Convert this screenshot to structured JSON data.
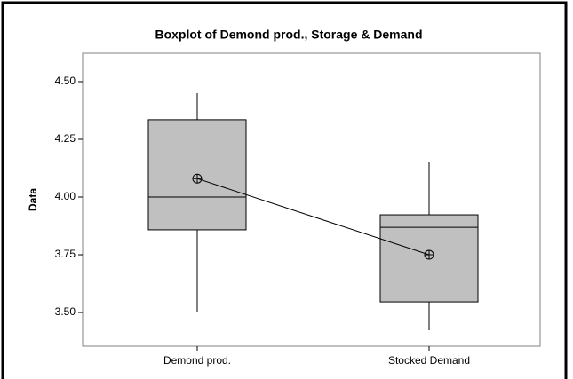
{
  "chart_data": {
    "type": "boxplot",
    "title": "Boxplot of Demond prod., Storage & Demand",
    "y_label": "Data",
    "categories": [
      "Demond prod.",
      "Stocked Demand"
    ],
    "boxes": [
      {
        "min": 3.5,
        "q1": 3.858,
        "median": 4.0,
        "q3": 4.335,
        "max": 4.45,
        "mean": 4.08
      },
      {
        "min": 3.423,
        "q1": 3.546,
        "median": 3.869,
        "q3": 3.923,
        "max": 4.15,
        "mean": 3.75
      }
    ],
    "color": "#c0c0c0",
    "ylim": [
      3.354,
      4.623
    ],
    "yticks": [
      {
        "value": 3.5,
        "label": "3.50"
      },
      {
        "value": 3.75,
        "label": "3.75"
      },
      {
        "value": 4.0,
        "label": "4.00"
      },
      {
        "value": 4.25,
        "label": "4.25"
      },
      {
        "value": 4.5,
        "label": "4.50"
      }
    ],
    "connect_means": true
  }
}
